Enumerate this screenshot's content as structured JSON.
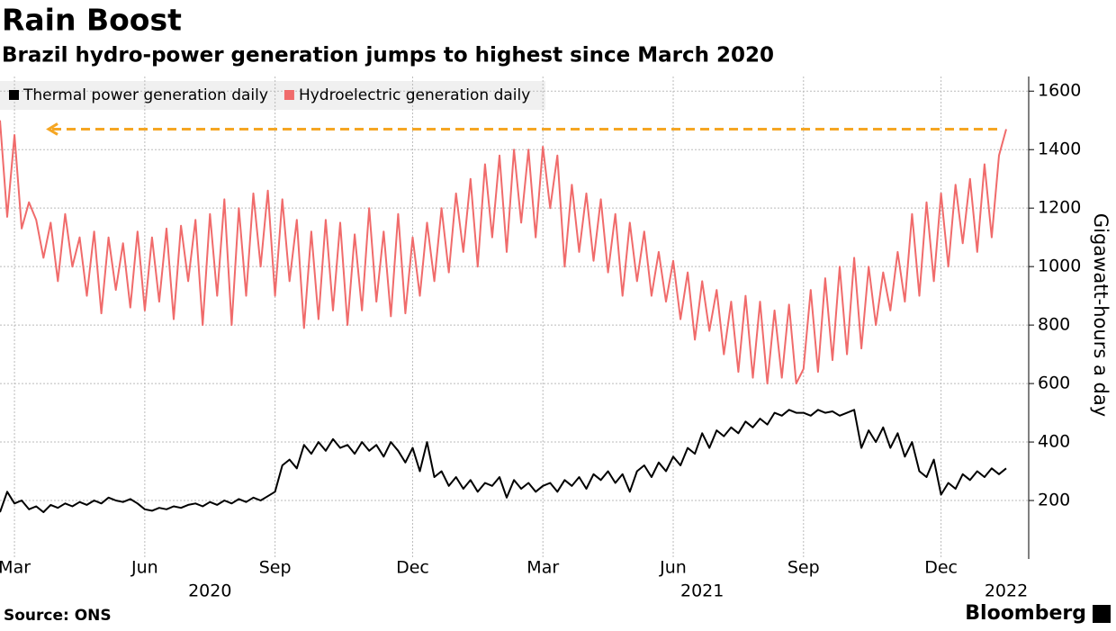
{
  "chart_data": {
    "type": "line",
    "title": "Rain Boost",
    "subtitle": "Brazil hydro-power generation jumps to highest since March 2020",
    "y_label": "Gigawatt-hours a day",
    "source": "Source: ONS",
    "brand": "Bloomberg",
    "grid": true,
    "categories": [
      null,
      null,
      "Mar",
      null,
      null,
      null,
      null,
      null,
      null,
      null,
      null,
      null,
      null,
      null,
      null,
      null,
      null,
      null,
      null,
      null,
      "Jun",
      null,
      null,
      null,
      null,
      null,
      null,
      null,
      null,
      null,
      null,
      null,
      null,
      null,
      null,
      null,
      null,
      null,
      "Sep",
      null,
      null,
      null,
      null,
      null,
      null,
      null,
      null,
      null,
      null,
      null,
      null,
      null,
      null,
      null,
      null,
      null,
      null,
      "Dec",
      null,
      null,
      null,
      null,
      null,
      null,
      null,
      null,
      null,
      null,
      null,
      null,
      null,
      null,
      null,
      null,
      null,
      "Mar",
      null,
      null,
      null,
      null,
      null,
      null,
      null,
      null,
      null,
      null,
      null,
      null,
      null,
      null,
      null,
      null,
      null,
      "Jun",
      null,
      null,
      null,
      null,
      null,
      null,
      null,
      null,
      null,
      null,
      null,
      null,
      null,
      null,
      null,
      null,
      null,
      "Sep",
      null,
      null,
      null,
      null,
      null,
      null,
      null,
      null,
      null,
      null,
      null,
      null,
      null,
      null,
      null,
      null,
      null,
      null,
      "Dec",
      null,
      null,
      null,
      null,
      null,
      null,
      null,
      null,
      null
    ],
    "years": [
      null,
      null,
      null,
      null,
      null,
      null,
      null,
      null,
      null,
      null,
      null,
      null,
      null,
      null,
      null,
      null,
      null,
      null,
      null,
      null,
      null,
      null,
      null,
      null,
      null,
      null,
      null,
      null,
      null,
      "2020",
      null,
      null,
      null,
      null,
      null,
      null,
      null,
      null,
      null,
      null,
      null,
      null,
      null,
      null,
      null,
      null,
      null,
      null,
      null,
      null,
      null,
      null,
      null,
      null,
      null,
      null,
      null,
      null,
      null,
      null,
      null,
      null,
      null,
      null,
      null,
      null,
      null,
      null,
      null,
      null,
      null,
      null,
      null,
      null,
      null,
      null,
      null,
      null,
      null,
      null,
      null,
      null,
      null,
      null,
      null,
      null,
      null,
      null,
      null,
      null,
      null,
      null,
      null,
      null,
      null,
      null,
      null,
      "2021",
      null,
      null,
      null,
      null,
      null,
      null,
      null,
      null,
      null,
      null,
      null,
      null,
      null,
      null,
      null,
      null,
      null,
      null,
      null,
      null,
      null,
      null,
      null,
      null,
      null,
      null,
      null,
      null,
      null,
      null,
      null,
      null,
      null,
      null,
      null,
      null,
      null,
      null,
      null,
      null,
      null,
      "2022"
    ],
    "series": [
      {
        "name": "Thermal power generation daily",
        "color": "#000000",
        "values": [
          160,
          230,
          190,
          200,
          170,
          180,
          160,
          185,
          175,
          190,
          180,
          195,
          185,
          200,
          190,
          210,
          200,
          195,
          205,
          190,
          170,
          165,
          175,
          170,
          180,
          175,
          185,
          190,
          180,
          195,
          185,
          200,
          190,
          205,
          195,
          210,
          200,
          215,
          230,
          320,
          340,
          310,
          390,
          360,
          400,
          370,
          410,
          380,
          390,
          360,
          400,
          370,
          390,
          350,
          400,
          370,
          330,
          380,
          300,
          400,
          280,
          300,
          250,
          280,
          240,
          270,
          230,
          260,
          250,
          280,
          210,
          270,
          240,
          260,
          230,
          250,
          260,
          230,
          270,
          250,
          280,
          240,
          290,
          270,
          300,
          260,
          290,
          230,
          300,
          320,
          280,
          330,
          300,
          350,
          320,
          380,
          360,
          430,
          380,
          440,
          420,
          450,
          430,
          470,
          450,
          480,
          460,
          500,
          490,
          510,
          500,
          500,
          490,
          510,
          500,
          505,
          490,
          500,
          510,
          380,
          440,
          400,
          450,
          380,
          430,
          350,
          400,
          300,
          280,
          340,
          220,
          260,
          240,
          290,
          270,
          300,
          280,
          310,
          290,
          310
        ]
      },
      {
        "name": "Hydroelectric generation daily",
        "color": "#f06b6b",
        "values": [
          1500,
          1170,
          1450,
          1130,
          1220,
          1160,
          1030,
          1150,
          950,
          1180,
          1000,
          1100,
          900,
          1120,
          840,
          1100,
          920,
          1080,
          860,
          1120,
          850,
          1100,
          880,
          1130,
          820,
          1140,
          950,
          1160,
          800,
          1180,
          900,
          1230,
          800,
          1200,
          900,
          1250,
          1000,
          1260,
          900,
          1230,
          950,
          1160,
          790,
          1120,
          820,
          1160,
          850,
          1150,
          800,
          1110,
          850,
          1200,
          880,
          1120,
          830,
          1180,
          840,
          1100,
          900,
          1150,
          950,
          1200,
          980,
          1250,
          1050,
          1300,
          1000,
          1350,
          1100,
          1380,
          1050,
          1400,
          1150,
          1400,
          1100,
          1410,
          1200,
          1380,
          1000,
          1280,
          1050,
          1250,
          1020,
          1230,
          980,
          1180,
          900,
          1150,
          950,
          1120,
          900,
          1050,
          880,
          1020,
          820,
          980,
          750,
          950,
          780,
          920,
          700,
          880,
          640,
          900,
          620,
          880,
          600,
          850,
          620,
          870,
          600,
          650,
          920,
          640,
          960,
          680,
          1000,
          700,
          1030,
          720,
          1000,
          800,
          980,
          850,
          1050,
          880,
          1180,
          900,
          1220,
          950,
          1250,
          1000,
          1280,
          1080,
          1300,
          1050,
          1350,
          1100,
          1380,
          1470
        ]
      }
    ],
    "reference_line": {
      "value": 1470,
      "color": "#f5a623"
    },
    "ylim": [
      0,
      1650
    ],
    "yticks": [
      200,
      400,
      600,
      800,
      1000,
      1200,
      1400,
      1600
    ]
  }
}
